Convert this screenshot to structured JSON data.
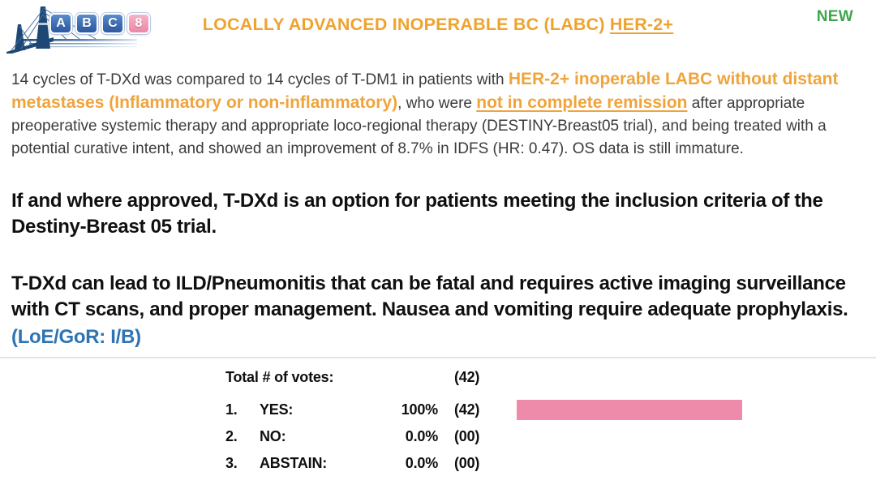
{
  "header": {
    "logo": {
      "bridge_icon": "cable-stayed-bridge",
      "tiles": [
        "A",
        "B",
        "C",
        "8"
      ]
    },
    "title_main": "LOCALLY ADVANCED INOPERABLE BC (LABC) ",
    "title_underlined": "HER-2+",
    "badge": "NEW",
    "colors": {
      "title": "#efa32f",
      "badge": "#3da64b"
    }
  },
  "summary": {
    "segments": [
      {
        "text": "14 cycles of T-DXd was compared to 14 cycles of T-DM1 in patients with ",
        "style": "normal"
      },
      {
        "text": "HER-2+ inoperable LABC without distant metastases (Inflammatory or non-inflammatory)",
        "style": "orange-bold"
      },
      {
        "text": ", who were ",
        "style": "normal"
      },
      {
        "text": "not in complete remission",
        "style": "orange-bold-underline"
      },
      {
        "text": " after appropriate preoperative systemic therapy and appropriate loco-regional therapy (DESTINY-Breast05 trial), and being treated with a potential curative intent, and showed an improvement of 8.7% in IDFS (HR: 0.47). OS data is still immature.",
        "style": "normal"
      }
    ]
  },
  "recommendation": {
    "statement1": "If and where approved, T-DXd is an option for patients meeting the inclusion criteria of the Destiny-Breast 05 trial.",
    "statement2": "T-DXd can lead to ILD/Pneumonitis that can be fatal and requires active imaging surveillance with CT scans, and proper management. Nausea and vomiting require adequate prophylaxis.",
    "loe_gor": "(LoE/GoR: I/B)",
    "loe_color": "#2e74b5"
  },
  "votes": {
    "total_label": "Total # of votes:",
    "total_count": "(42)",
    "bar_color": "#ee8bab",
    "rows": [
      {
        "num": "1.",
        "label": "YES:",
        "pct": "100%",
        "count": "(42)",
        "bar_pct": 100
      },
      {
        "num": "2.",
        "label": "NO:",
        "pct": "0.0%",
        "count": "(00)",
        "bar_pct": 0
      },
      {
        "num": "3.",
        "label": "ABSTAIN:",
        "pct": "0.0%",
        "count": "(00)",
        "bar_pct": 0
      }
    ]
  },
  "chart_data": {
    "type": "bar",
    "orientation": "horizontal",
    "title": "Total # of votes: (42)",
    "categories": [
      "YES",
      "NO",
      "ABSTAIN"
    ],
    "values": [
      100,
      0,
      0
    ],
    "counts": [
      42,
      0,
      0
    ],
    "total_votes": 42,
    "xlabel": "",
    "ylabel": "",
    "xlim": [
      0,
      100
    ],
    "bar_color": "#ee8bab"
  }
}
